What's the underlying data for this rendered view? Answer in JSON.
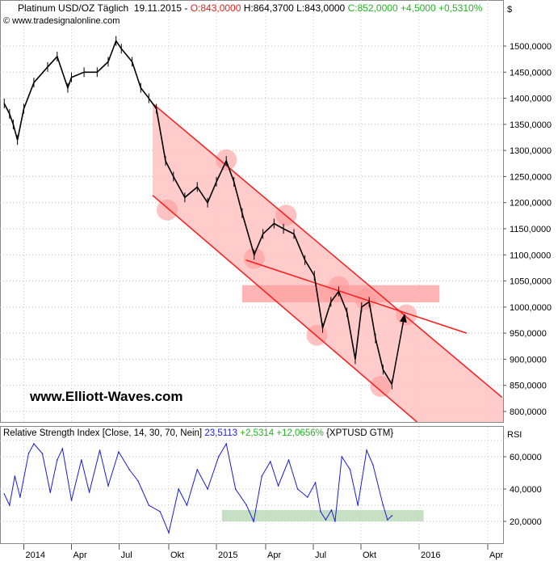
{
  "header": {
    "symbol_icon": "candlestick-icon",
    "title": "Platinum USD/OZ Täglich",
    "date": "19.11.2015",
    "sep": "-",
    "open": "O:843,0000",
    "high": "H:864,3700",
    "low": "L:843,0000",
    "close_change": "C:852,0000 +4,5000 +0,5310%",
    "copyright": "© www.tradesignalonline.com"
  },
  "watermark": "www.Elliott-Waves.com",
  "rsi_header": {
    "icon": "rsi-wave-icon",
    "label": "Relative Strength Index [Close, 14, 30, 70, Nein]",
    "value": "23,5113",
    "change": "+2,5314 +12,0656%",
    "instrument": "{XPTUSD GTM}"
  },
  "colors": {
    "price": "#000000",
    "rsi": "#1a1ae8",
    "channel_fill": "#ffc2c2",
    "channel_line": "#ff1a1a",
    "rsi_zone": "#b9d8b4",
    "resistance_zone": "#ff9c9c"
  },
  "chart_data": [
    {
      "type": "line",
      "title": "Platinum USD/OZ Täglich",
      "unit_label": "$",
      "ylim": [
        780,
        1540
      ],
      "yticks": [
        "1500,0000",
        "1450,0000",
        "1400,0000",
        "1350,0000",
        "1300,0000",
        "1250,0000",
        "1200,0000",
        "1150,0000",
        "1100,0000",
        "1050,0000",
        "1000,0000",
        "950,0000",
        "900,0000",
        "850,0000",
        "800,0000"
      ],
      "ytick_values": [
        1500,
        1450,
        1400,
        1350,
        1300,
        1250,
        1200,
        1150,
        1100,
        1050,
        1000,
        950,
        900,
        850,
        800
      ],
      "grid": true,
      "series": [
        {
          "dates": [
            "2013-11-25",
            "2013-12-05",
            "2013-12-12",
            "2013-12-20",
            "2014-01-01",
            "2014-01-20",
            "2014-02-15",
            "2014-03-05",
            "2014-03-25",
            "2014-04-01",
            "2014-04-25",
            "2014-05-20",
            "2014-06-10",
            "2014-06-25",
            "2014-07-05",
            "2014-07-25",
            "2014-08-10",
            "2014-08-25",
            "2014-09-08",
            "2014-09-25",
            "2014-10-10",
            "2014-11-01",
            "2014-11-25",
            "2014-12-15",
            "2015-01-01",
            "2015-01-19",
            "2015-02-02",
            "2015-02-17",
            "2015-03-11",
            "2015-03-27",
            "2015-04-17",
            "2015-05-05",
            "2015-05-25",
            "2015-06-15",
            "2015-07-03",
            "2015-07-19",
            "2015-08-04",
            "2015-08-19",
            "2015-09-04",
            "2015-09-20",
            "2015-10-02",
            "2015-10-14",
            "2015-10-24",
            "2015-11-05",
            "2015-11-19"
          ],
          "values": [
            1390,
            1370,
            1350,
            1320,
            1380,
            1430,
            1460,
            1480,
            1420,
            1440,
            1450,
            1450,
            1470,
            1510,
            1495,
            1470,
            1420,
            1400,
            1380,
            1280,
            1250,
            1210,
            1230,
            1200,
            1240,
            1280,
            1240,
            1180,
            1100,
            1140,
            1160,
            1150,
            1140,
            1090,
            1060,
            960,
            1010,
            1030,
            990,
            900,
            1000,
            1010,
            940,
            880,
            852
          ]
        }
      ],
      "annotations": {
        "channel_upper": [
          [
            "2014-09-01",
            1390
          ],
          [
            "2016-04-20",
            827
          ]
        ],
        "channel_lower": [
          [
            "2014-09-01",
            1214
          ],
          [
            "2016-01-02",
            775
          ]
        ],
        "trendline": [
          [
            "2015-02-24",
            1090
          ],
          [
            "2016-03-04",
            950
          ]
        ],
        "resistance_zone": {
          "from": "2015-02-17",
          "to": "2016-01-28",
          "low": 1009,
          "high": 1042
        },
        "arrow": [
          [
            "2015-11-19",
            853
          ],
          [
            "2015-12-09",
            985
          ]
        ],
        "circles": [
          [
            "2014-09-28",
            1186
          ],
          [
            "2015-01-19",
            1282
          ],
          [
            "2015-03-11",
            1093
          ],
          [
            "2015-05-10",
            1176
          ],
          [
            "2015-07-08",
            946
          ],
          [
            "2015-08-19",
            1039
          ],
          [
            "2015-10-08",
            1015
          ],
          [
            "2015-11-01",
            848
          ],
          [
            "2015-12-12",
            985
          ]
        ]
      }
    },
    {
      "type": "line",
      "title": "Relative Strength Index",
      "unit_label": "RSI",
      "ylim": [
        9,
        79
      ],
      "yticks": [
        "60,0000",
        "40,0000",
        "20,0000"
      ],
      "ytick_values": [
        60,
        40,
        20
      ],
      "grid": true,
      "series": [
        {
          "dates": [
            "2013-11-25",
            "2013-12-05",
            "2013-12-15",
            "2013-12-25",
            "2014-01-10",
            "2014-01-20",
            "2014-02-05",
            "2014-02-20",
            "2014-03-05",
            "2014-03-15",
            "2014-04-01",
            "2014-04-20",
            "2014-05-05",
            "2014-05-25",
            "2014-06-10",
            "2014-06-30",
            "2014-07-20",
            "2014-08-05",
            "2014-08-25",
            "2014-09-15",
            "2014-10-01",
            "2014-10-20",
            "2014-11-05",
            "2014-11-25",
            "2014-12-15",
            "2015-01-05",
            "2015-01-19",
            "2015-02-05",
            "2015-02-25",
            "2015-03-10",
            "2015-03-25",
            "2015-04-10",
            "2015-04-25",
            "2015-05-15",
            "2015-06-01",
            "2015-06-20",
            "2015-07-05",
            "2015-07-15",
            "2015-07-25",
            "2015-08-05",
            "2015-08-12",
            "2015-08-25",
            "2015-09-10",
            "2015-09-25",
            "2015-10-10",
            "2015-10-20",
            "2015-11-05",
            "2015-11-12",
            "2015-11-19"
          ],
          "values": [
            37,
            30,
            48,
            35,
            62,
            68,
            62,
            38,
            58,
            65,
            33,
            58,
            38,
            64,
            42,
            63,
            52,
            45,
            30,
            26,
            13,
            40,
            30,
            52,
            40,
            60,
            68,
            40,
            30,
            20,
            48,
            57,
            42,
            58,
            40,
            35,
            44,
            26,
            21,
            27,
            20,
            60,
            52,
            30,
            64,
            55,
            30,
            21,
            23.5
          ]
        }
      ],
      "annotations": {
        "zone": {
          "from": "2015-01-11",
          "to": "2016-01-07",
          "low": 20,
          "high": 27
        }
      }
    },
    {
      "type": "axis",
      "xticks": [
        "2014",
        "Apr",
        "Jul",
        "Okt",
        "2015",
        "Apr",
        "Jul",
        "Okt",
        "2016",
        "Apr"
      ],
      "xtick_dates": [
        "2014-01-01",
        "2014-04-01",
        "2014-07-01",
        "2014-10-01",
        "2015-01-01",
        "2015-04-01",
        "2015-07-01",
        "2015-10-01",
        "2016-01-01",
        "2016-04-01"
      ]
    }
  ]
}
